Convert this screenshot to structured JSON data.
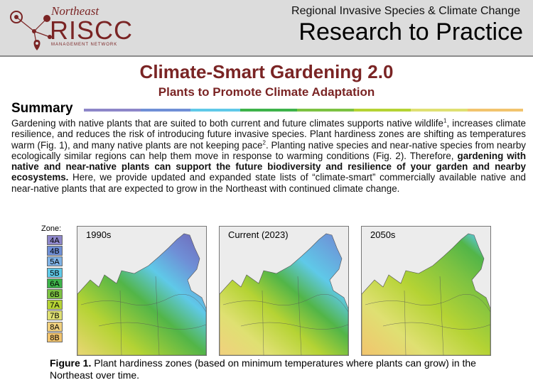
{
  "header": {
    "logo": {
      "northeast": "Northeast",
      "riscc": "RISCC",
      "network": "MANAGEMENT NETWORK",
      "icon": "pin-network-icon"
    },
    "top_line": "Regional Invasive Species & Climate Change",
    "main_title": "Research to Practice"
  },
  "doc": {
    "title": "Climate-Smart Gardening 2.0",
    "subtitle": "Plants to Promote Climate Adaptation",
    "section_heading": "Summary",
    "summary": {
      "p1": "Gardening with native plants that are suited to both current and future climates supports native wildlife",
      "sup1": "1",
      "p2": ", increases climate resilience, and reduces the risk of introducing future invasive species. Plant hardiness zones are shifting as temperatures warm (Fig. 1), and many native plants are not keeping pace",
      "sup2": "2",
      "p3": ". Planting native species and near-native species from nearby ecologically similar regions can help them move in response to warming conditions (Fig. 2). Therefore, ",
      "bold": "gardening with native and near-native plants can support the future biodiversity and resilience of your garden and nearby ecosystems.",
      "p4": " Here, we provide updated and expanded state lists of “climate-smart” commercially available native and near-native plants that are expected to grow in the Northeast with continued climate change."
    }
  },
  "figure": {
    "zone_label": "Zone:",
    "zones": [
      {
        "label": "4A",
        "color": "#8d86c9"
      },
      {
        "label": "4B",
        "color": "#6f8fd6"
      },
      {
        "label": "5A",
        "color": "#7fb2e5"
      },
      {
        "label": "5B",
        "color": "#5fc9e8"
      },
      {
        "label": "6A",
        "color": "#3db34a"
      },
      {
        "label": "6B",
        "color": "#7cc242"
      },
      {
        "label": "7A",
        "color": "#b5d334"
      },
      {
        "label": "7B",
        "color": "#dfe072"
      },
      {
        "label": "8A",
        "color": "#f1d07e"
      },
      {
        "label": "8B",
        "color": "#f2c46e"
      }
    ],
    "maps": [
      {
        "label": "1990s"
      },
      {
        "label": "Current (2023)"
      },
      {
        "label": "2050s"
      }
    ],
    "caption_bold": "Figure 1.",
    "caption_text": " Plant hardiness zones (based on minimum temperatures where plants can grow) in the Northeast over time."
  }
}
